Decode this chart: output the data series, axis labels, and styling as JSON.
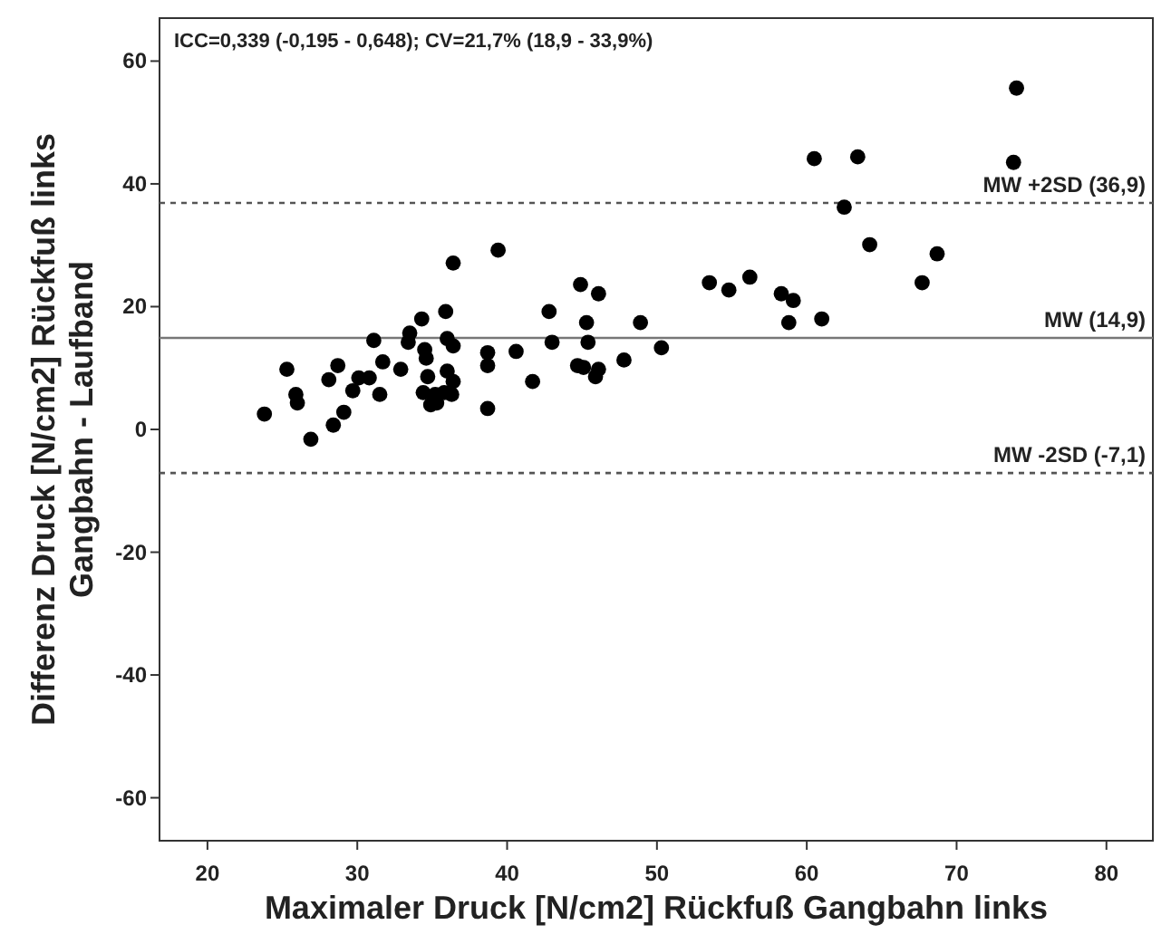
{
  "chart_data": {
    "type": "scatter",
    "xlabel": "Maximaler Druck [N/cm2] Rückfuß Gangbahn links",
    "ylabel": "Differenz Druck [N/cm2] Rückfuß links\nGangbahn - Laufband",
    "annotations": [
      "ICC=0,339 (-0,195 - 0,648); CV=21,7% (18,9 - 33,9%)"
    ],
    "xlim": [
      16.8,
      83.1
    ],
    "xticks": [
      20,
      30,
      40,
      50,
      60,
      70,
      80
    ],
    "ylim": [
      -67,
      67
    ],
    "yticks": [
      -60,
      -40,
      -20,
      0,
      20,
      40,
      60
    ],
    "grid": false,
    "marker": "circle",
    "ref_lines": [
      {
        "axis": "y",
        "value": 36.9,
        "label": "MW +2SD (36,9)",
        "color": "#555555",
        "line_style": "dashed"
      },
      {
        "axis": "y",
        "value": 14.9,
        "label": "MW (14,9)",
        "color": "#777777",
        "line_style": "solid"
      },
      {
        "axis": "y",
        "value": -7.1,
        "label": "MW -2SD (-7,1)",
        "color": "#555555",
        "line_style": "dashed"
      }
    ],
    "series": [
      {
        "color": "#000000",
        "x": [
          39.4,
          36.4,
          34.3,
          35.9,
          31.1,
          33.5,
          33.4,
          36.0,
          36.4,
          40.6,
          38.7,
          38.7,
          34.5,
          34.6,
          31.7,
          32.9,
          30.8,
          30.1,
          28.7,
          28.1,
          29.7,
          31.5,
          25.3,
          25.9,
          26.0,
          23.8,
          29.1,
          28.4,
          26.9,
          38.7,
          36.0,
          36.4,
          36.3,
          35.2,
          34.4,
          34.7,
          34.9,
          35.3,
          35.8,
          60.5,
          63.4,
          62.5,
          42.8,
          44.9,
          46.1,
          45.3,
          48.9,
          43.0,
          45.4,
          50.3,
          41.7,
          44.7,
          45.1,
          46.1,
          45.9,
          47.8,
          53.5,
          54.8,
          56.2,
          58.3,
          59.1,
          58.8,
          61.0,
          73.8,
          64.2,
          68.7,
          67.7,
          74.0
        ],
        "values": [
          29.2,
          27.1,
          18.0,
          19.2,
          14.5,
          15.7,
          14.2,
          14.8,
          13.6,
          12.7,
          12.5,
          10.4,
          13.0,
          11.6,
          11.0,
          9.8,
          8.4,
          8.4,
          10.4,
          8.1,
          6.3,
          5.7,
          9.8,
          5.7,
          4.3,
          2.5,
          2.8,
          0.7,
          -1.6,
          3.4,
          9.5,
          7.8,
          5.7,
          5.7,
          6.0,
          8.6,
          4.0,
          4.3,
          6.0,
          44.1,
          44.4,
          36.2,
          19.2,
          23.6,
          22.1,
          17.4,
          17.4,
          14.2,
          14.2,
          13.3,
          7.8,
          10.4,
          10.1,
          9.8,
          8.6,
          11.3,
          23.9,
          22.7,
          24.8,
          22.1,
          21.0,
          17.4,
          18.0,
          43.5,
          30.1,
          28.6,
          23.9,
          55.6
        ]
      }
    ]
  }
}
